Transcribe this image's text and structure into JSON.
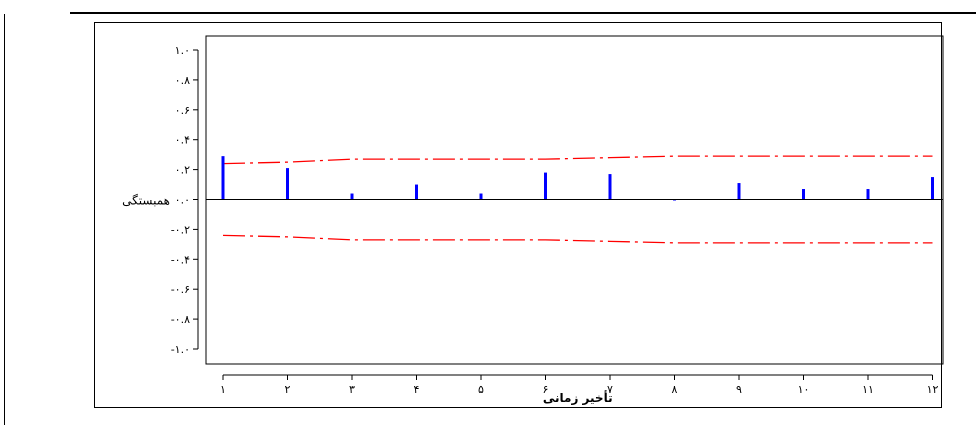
{
  "chart_data": {
    "type": "bar",
    "title": "",
    "xlabel": "تأخیر زمانی",
    "ylabel": "همبستگی",
    "x": [
      1,
      2,
      3,
      4,
      5,
      6,
      7,
      8,
      9,
      10,
      11,
      12
    ],
    "x_tick_labels": [
      "١",
      "٢",
      "٣",
      "۴",
      "۵",
      "۶",
      "٧",
      "٨",
      "٩",
      "١٠",
      "١١",
      "١٢"
    ],
    "values": [
      0.29,
      0.21,
      0.04,
      0.1,
      0.04,
      0.18,
      0.17,
      0.0,
      0.11,
      0.07,
      0.07,
      0.15
    ],
    "ylim": [
      -1.1,
      1.1
    ],
    "y_ticks": [
      1.0,
      0.8,
      0.6,
      0.4,
      0.2,
      0.0,
      -0.2,
      -0.4,
      -0.6,
      -0.8,
      -1.0
    ],
    "y_tick_labels": [
      "١.٠",
      "٠.٨",
      "٠.۶",
      "٠.۴",
      "٠.٢",
      "٠.٠",
      "-٠.٢",
      "-٠.۴",
      "-٠.۶",
      "-٠.٨",
      "-١.٠"
    ],
    "bar_color": "#0000ff",
    "confidence_upper": [
      0.24,
      0.25,
      0.27,
      0.27,
      0.27,
      0.27,
      0.28,
      0.29,
      0.29,
      0.29,
      0.29,
      0.29
    ],
    "confidence_lower": [
      -0.24,
      -0.25,
      -0.27,
      -0.27,
      -0.27,
      -0.27,
      -0.28,
      -0.29,
      -0.29,
      -0.29,
      -0.29,
      -0.29
    ],
    "confidence_color": "#ff0000",
    "grid": false
  }
}
